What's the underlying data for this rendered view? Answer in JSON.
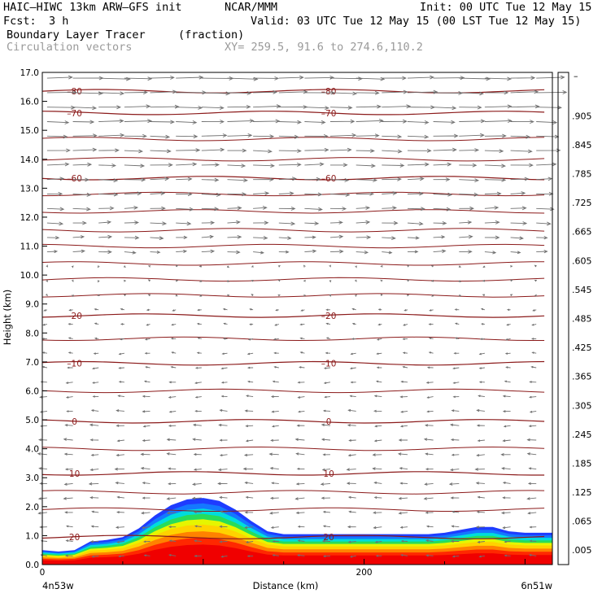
{
  "header": {
    "model": "HAIC–HIWC 13km ARW–GFS init",
    "org": "NCAR/MMM",
    "init": "Init: 00 UTC Tue 12 May 15",
    "fcst_label": "Fcst:",
    "fcst_value": "3 h",
    "valid": "Valid: 03 UTC Tue 12 May 15 (00 LST Tue 12 May 15)",
    "field": "Boundary Layer Tracer",
    "field_units": "(fraction)",
    "vectors": "Circulation vectors",
    "xy": "XY= 259.5, 91.6 to 274.6,110.2"
  },
  "chart_data": {
    "type": "heatmap",
    "title": "Boundary Layer Tracer",
    "units": "(fraction)",
    "xlabel": "Distance (km)",
    "ylabel": "Height (km)",
    "xlim": [
      0,
      317
    ],
    "ylim": [
      0,
      17
    ],
    "x_ticks": [
      {
        "v": 0,
        "label": "0"
      },
      {
        "v": 200,
        "label": "200"
      }
    ],
    "x_end_labels": [
      "4n53w",
      "6n51w"
    ],
    "y_ticks": [
      0.0,
      1.0,
      2.0,
      3.0,
      4.0,
      5.0,
      6.0,
      7.0,
      8.0,
      9.0,
      10.0,
      11.0,
      12.0,
      13.0,
      14.0,
      15.0,
      16.0,
      17.0
    ],
    "y_tick_labels": [
      "0.0",
      "1.0",
      "2.0",
      "3.0",
      "4.0",
      "5.0",
      "6.0",
      "7.0",
      "8.0",
      "9.0",
      "10.0",
      "11.0",
      "12.0",
      "13.0",
      "14.0",
      "15.0",
      "16.0",
      "17.0"
    ],
    "colorbar": {
      "labels": [
        ".005",
        ".065",
        ".125",
        ".185",
        ".245",
        ".305",
        ".365",
        ".425",
        ".485",
        ".545",
        ".605",
        ".665",
        ".725",
        ".785",
        ".845",
        ".905"
      ],
      "top_label": "–",
      "colors": [
        "#ffffff",
        "#1e3cff",
        "#1478ff",
        "#00b4ff",
        "#00dcdc",
        "#00e6a0",
        "#28dc5a",
        "#78e628",
        "#b4f000",
        "#e6f500",
        "#fff000",
        "#ffd200",
        "#ffaa00",
        "#ff8200",
        "#ff5a00",
        "#ff2800",
        "#f00000"
      ]
    },
    "tracer_profile": {
      "x": [
        0,
        10,
        20,
        30,
        40,
        50,
        60,
        70,
        80,
        90,
        100,
        110,
        120,
        130,
        140,
        150,
        160,
        170,
        180,
        190,
        200,
        210,
        220,
        230,
        240,
        250,
        260,
        270,
        280,
        290,
        300,
        310,
        317
      ],
      "top_km": [
        0.5,
        0.45,
        0.5,
        0.8,
        0.85,
        0.95,
        1.25,
        1.7,
        2.05,
        2.25,
        2.3,
        2.2,
        1.9,
        1.5,
        1.15,
        1.05,
        1.05,
        1.05,
        1.05,
        1.05,
        1.05,
        1.05,
        1.05,
        1.05,
        1.05,
        1.1,
        1.2,
        1.3,
        1.3,
        1.15,
        1.1,
        1.1,
        1.1
      ]
    },
    "temperature_contours": [
      {
        "value": -80,
        "height_km": 16.35,
        "label": "–80"
      },
      {
        "value": -70,
        "height_km": 15.6,
        "label": "–70"
      },
      {
        "value": -60,
        "height_km": 13.35,
        "label": "–60"
      },
      {
        "value": -20,
        "height_km": 8.6,
        "label": "–20"
      },
      {
        "value": -10,
        "height_km": 6.95,
        "label": "–10"
      },
      {
        "value": 0,
        "height_km": 4.95,
        "label": "0"
      },
      {
        "value": 10,
        "height_km": 3.15,
        "label": "10"
      },
      {
        "value": 20,
        "height_km": 0.95,
        "label": "20"
      }
    ],
    "unlabeled_contour_heights_km": [
      1.9,
      2.5,
      4.0,
      6.0,
      7.8,
      9.3,
      9.85,
      10.4,
      11.0,
      11.55,
      12.2,
      12.8,
      14.0,
      14.7
    ],
    "vector_field": {
      "easterly_below_km": 9.0,
      "westerly_above_km": 10.3,
      "upper_level_speed": "strong",
      "low_level_speed": "weak"
    },
    "grid": false
  }
}
